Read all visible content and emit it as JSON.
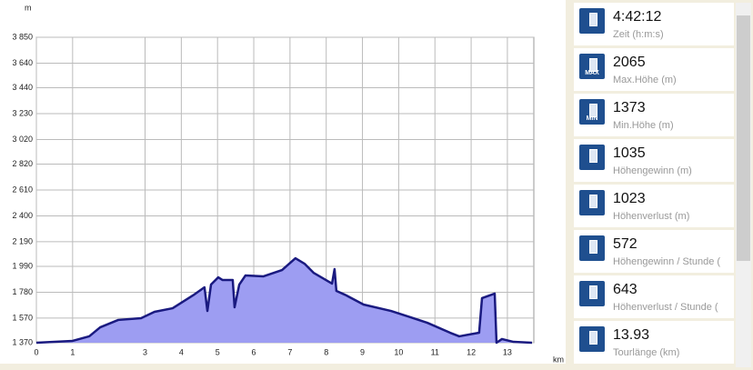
{
  "chart_data": {
    "type": "area",
    "y_unit": "m",
    "x_unit": "km",
    "x": [
      0,
      0.5,
      1.0,
      1.46,
      1.76,
      2.26,
      2.89,
      3.26,
      3.76,
      4.32,
      4.64,
      4.72,
      4.82,
      5.02,
      5.14,
      5.42,
      5.47,
      5.6,
      5.77,
      6.27,
      6.78,
      7.15,
      7.4,
      7.65,
      8.16,
      8.23,
      8.28,
      8.53,
      9.03,
      9.79,
      10.41,
      10.79,
      11.42,
      11.67,
      12.22,
      12.3,
      12.65,
      12.7,
      12.85,
      13.17,
      13.68
    ],
    "values": [
      1370,
      1377,
      1385,
      1422,
      1495,
      1555,
      1569,
      1621,
      1650,
      1754,
      1820,
      1628,
      1842,
      1901,
      1879,
      1879,
      1658,
      1842,
      1916,
      1909,
      1960,
      2056,
      2012,
      1938,
      1850,
      1968,
      1791,
      1758,
      1680,
      1628,
      1569,
      1532,
      1451,
      1422,
      1451,
      1732,
      1769,
      1370,
      1400,
      1377,
      1370
    ],
    "color": "#1a1a80",
    "fill": "#9d9df2",
    "xlim": [
      0,
      13.73
    ],
    "ylim": [
      1370,
      3850
    ],
    "xticks": [
      0,
      1,
      3,
      4,
      5,
      6,
      7,
      8,
      9,
      10,
      11,
      12,
      13
    ],
    "yticks": [
      {
        "value": 1370,
        "label": "1 370"
      },
      {
        "value": 1570,
        "label": "1 570"
      },
      {
        "value": 1780,
        "label": "1 780"
      },
      {
        "value": 1990,
        "label": "1 990"
      },
      {
        "value": 2190,
        "label": "2 190"
      },
      {
        "value": 2400,
        "label": "2 400"
      },
      {
        "value": 2610,
        "label": "2 610"
      },
      {
        "value": 2820,
        "label": "2 820"
      },
      {
        "value": 3020,
        "label": "3 020"
      },
      {
        "value": 3230,
        "label": "3 230"
      },
      {
        "value": 3440,
        "label": "3 440"
      },
      {
        "value": 3640,
        "label": "3 640"
      },
      {
        "value": 3850,
        "label": "3 850"
      }
    ],
    "grid": true
  },
  "stats": [
    {
      "icon": "",
      "value": "4:42:12",
      "label": "Zeit (h:m:s)"
    },
    {
      "icon": "MAX",
      "value": "2065",
      "label": "Max.Höhe (m)"
    },
    {
      "icon": "MIN",
      "value": "1373",
      "label": "Min.Höhe (m)"
    },
    {
      "icon": "",
      "value": "1035",
      "label": "Höhengewinn (m)"
    },
    {
      "icon": "",
      "value": "1023",
      "label": "Höhenverlust (m)"
    },
    {
      "icon": "",
      "value": "572",
      "label": "Höhengewinn  /  Stunde ("
    },
    {
      "icon": "",
      "value": "643",
      "label": "Höhenverlust  /  Stunde ("
    },
    {
      "icon": "",
      "value": "13.93",
      "label": "Tourlänge (km)"
    }
  ]
}
